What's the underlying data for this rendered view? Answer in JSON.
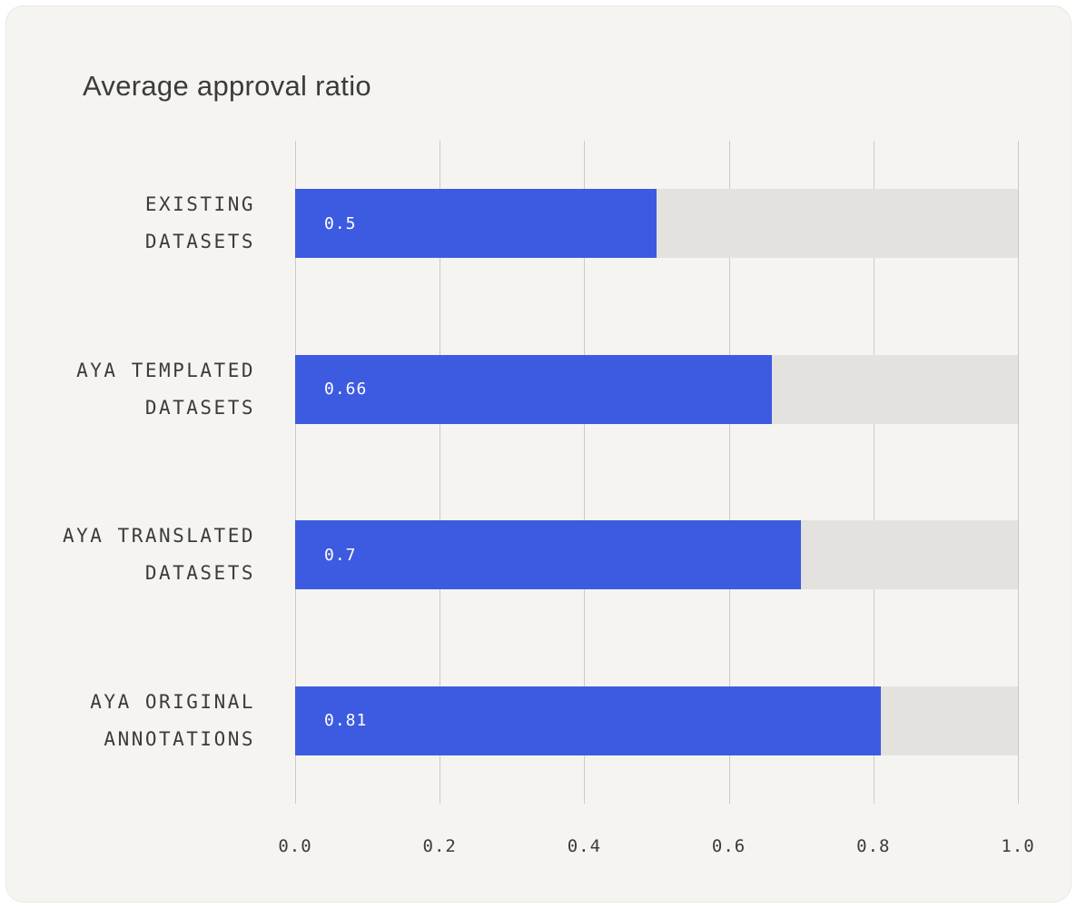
{
  "chart_data": {
    "type": "bar",
    "orientation": "horizontal",
    "title": "Average approval ratio",
    "categories": [
      "EXISTING DATASETS",
      "AYA TEMPLATED DATASETS",
      "AYA TRANSLATED DATASETS",
      "AYA ORIGINAL ANNOTATIONS"
    ],
    "values": [
      0.5,
      0.66,
      0.7,
      0.81
    ],
    "value_labels": [
      "0.5",
      "0.66",
      "0.7",
      "0.81"
    ],
    "xlabel": "",
    "ylabel": "",
    "xlim": [
      0,
      1
    ],
    "xticks": [
      0,
      0.2,
      0.4,
      0.6,
      0.8,
      1
    ],
    "xtick_labels": [
      "0.0",
      "0.2",
      "0.4",
      "0.6",
      "0.8",
      "1.0"
    ],
    "grid": true,
    "legend": "none",
    "colors": {
      "bar": "#3d5be0",
      "track": "#e3e2de",
      "background": "#f5f4f1",
      "gridline": "#cbcac6",
      "text": "#3b3b38"
    }
  }
}
